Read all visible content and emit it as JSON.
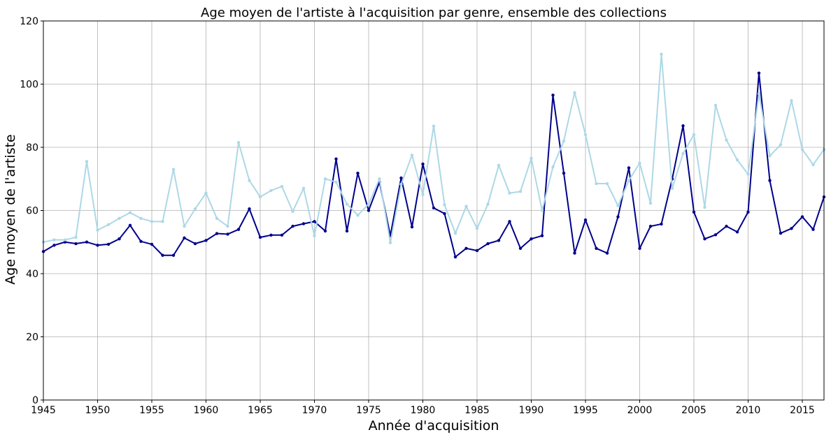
{
  "chart_data": {
    "type": "line",
    "title": "Age moyen de l'artiste à l'acquisition par genre, ensemble des collections",
    "xlabel": "Année d'acquisition",
    "ylabel": "Age moyen de l'artiste",
    "xlim": [
      1945,
      2017
    ],
    "ylim": [
      0,
      120
    ],
    "x_ticks": [
      1945,
      1950,
      1955,
      1960,
      1965,
      1970,
      1975,
      1980,
      1985,
      1990,
      1995,
      2000,
      2005,
      2010,
      2015
    ],
    "y_ticks": [
      0,
      20,
      40,
      60,
      80,
      100,
      120
    ],
    "grid": true,
    "x": [
      1945,
      1946,
      1947,
      1948,
      1949,
      1950,
      1951,
      1952,
      1953,
      1954,
      1955,
      1956,
      1957,
      1958,
      1959,
      1960,
      1961,
      1962,
      1963,
      1964,
      1965,
      1966,
      1967,
      1968,
      1969,
      1970,
      1971,
      1972,
      1973,
      1974,
      1975,
      1976,
      1977,
      1978,
      1979,
      1980,
      1981,
      1982,
      1983,
      1984,
      1985,
      1986,
      1987,
      1988,
      1989,
      1990,
      1991,
      1992,
      1993,
      1994,
      1995,
      1996,
      1997,
      1998,
      1999,
      2000,
      2001,
      2002,
      2003,
      2004,
      2005,
      2006,
      2007,
      2008,
      2009,
      2010,
      2011,
      2012,
      2013,
      2014,
      2015,
      2016,
      2017
    ],
    "series": [
      {
        "color": "#00008b",
        "values": [
          47,
          49,
          50,
          49.5,
          50,
          49,
          49.3,
          51,
          55.3,
          50.2,
          49.3,
          45.8,
          45.8,
          51.3,
          49.5,
          50.5,
          52.7,
          52.5,
          54,
          60.5,
          51.5,
          52.2,
          52.2,
          55,
          55.8,
          56.5,
          53.5,
          76.3,
          53.5,
          71.8,
          60,
          69,
          52,
          70.3,
          54.8,
          74.7,
          60.8,
          59,
          45.3,
          48,
          47.3,
          49.5,
          50.5,
          56.5,
          48,
          51,
          52,
          96.5,
          71.8,
          46.5,
          57,
          48,
          46.5,
          58,
          73.5,
          48,
          55,
          55.7,
          70,
          86.8,
          59.5,
          51,
          52.3,
          55,
          53.2,
          59.5,
          103.5,
          69.5,
          52.8,
          54.3,
          58,
          54,
          64.3
        ]
      },
      {
        "color": "#add8e6",
        "values": [
          50,
          50.7,
          50.7,
          51.5,
          75.5,
          53.8,
          55.5,
          57.5,
          59.3,
          57.5,
          56.5,
          56.5,
          73,
          55,
          60.5,
          65.5,
          57.5,
          55,
          81.5,
          69.5,
          64.3,
          66.3,
          67.6,
          59.7,
          67,
          52,
          70,
          69,
          62,
          58.5,
          62,
          70,
          49.8,
          68.3,
          77.5,
          65,
          86.7,
          61.8,
          52.8,
          61.3,
          54.3,
          62,
          74.3,
          65.5,
          66,
          76.5,
          60,
          73.8,
          82,
          97.3,
          84,
          68.5,
          68.5,
          61.5,
          69.5,
          75,
          62.3,
          109.5,
          67,
          78,
          84,
          61,
          93.3,
          82.3,
          76,
          71.5,
          97,
          77.3,
          80.8,
          94.8,
          79.3,
          74.5,
          79.3
        ]
      }
    ]
  }
}
